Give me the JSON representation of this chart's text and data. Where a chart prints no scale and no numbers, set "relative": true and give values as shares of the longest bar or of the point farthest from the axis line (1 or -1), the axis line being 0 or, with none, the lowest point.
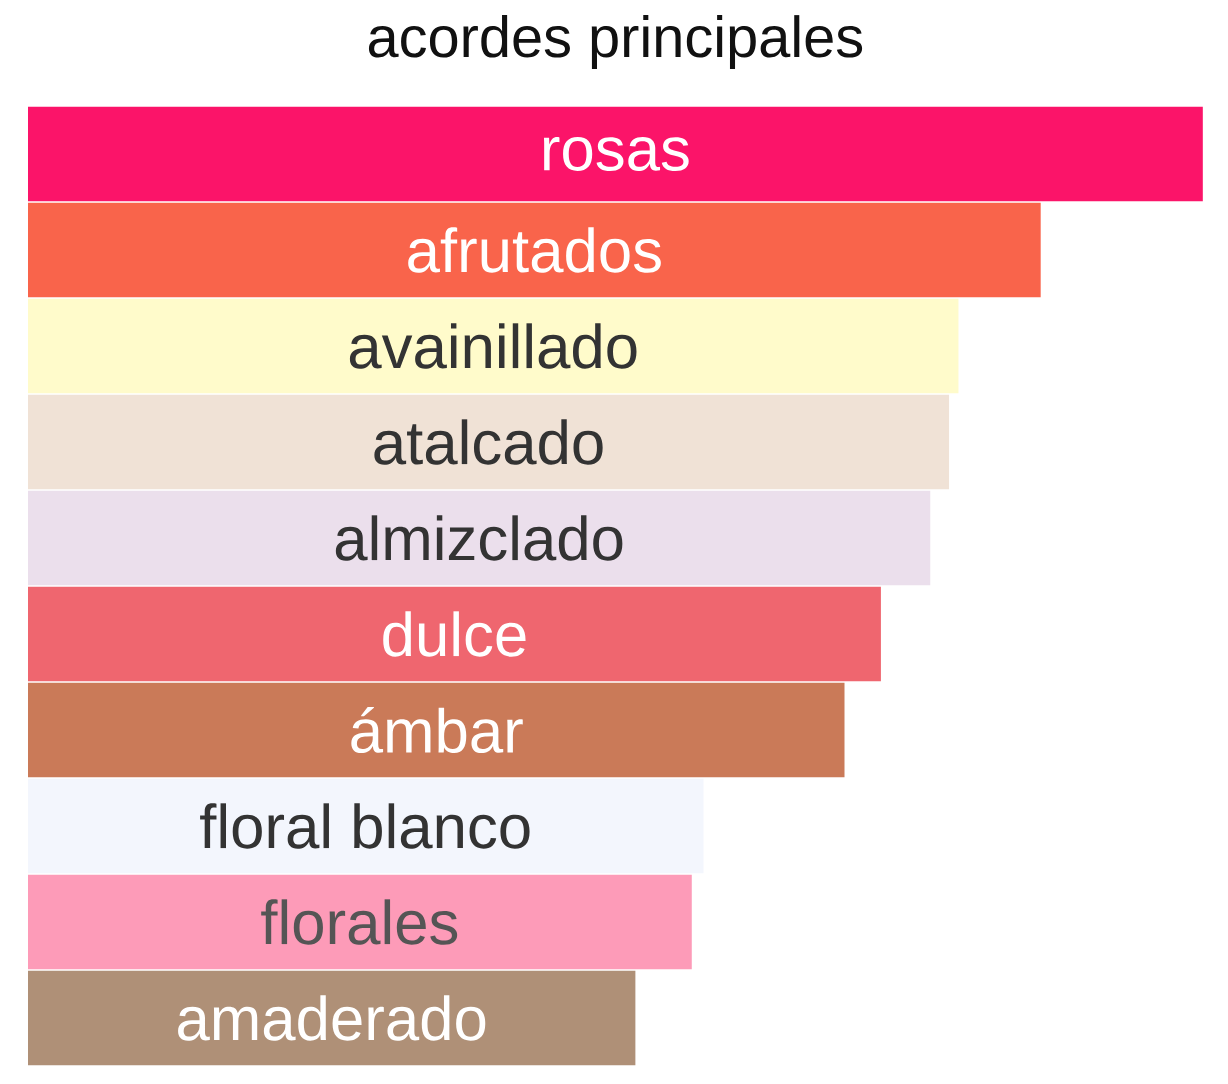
{
  "chart_data": {
    "type": "bar",
    "orientation": "horizontal",
    "relative": true,
    "title": "acordes principales",
    "categories": [
      "rosas",
      "afrutados",
      "avainillado",
      "atalcado",
      "almizclado",
      "dulce",
      "ámbar",
      "floral blanco",
      "florales",
      "amaderado"
    ],
    "values": [
      1,
      0.862,
      0.792,
      0.784,
      0.768,
      0.726,
      0.695,
      0.575,
      0.565,
      0.517
    ],
    "colors": [
      "#fb1469",
      "#f9644b",
      "#fffbcb",
      "#f0e2d6",
      "#ebdfec",
      "#ef666f",
      "#ca7a58",
      "#f3f6fd",
      "#fd9bb8",
      "#af9077"
    ]
  }
}
